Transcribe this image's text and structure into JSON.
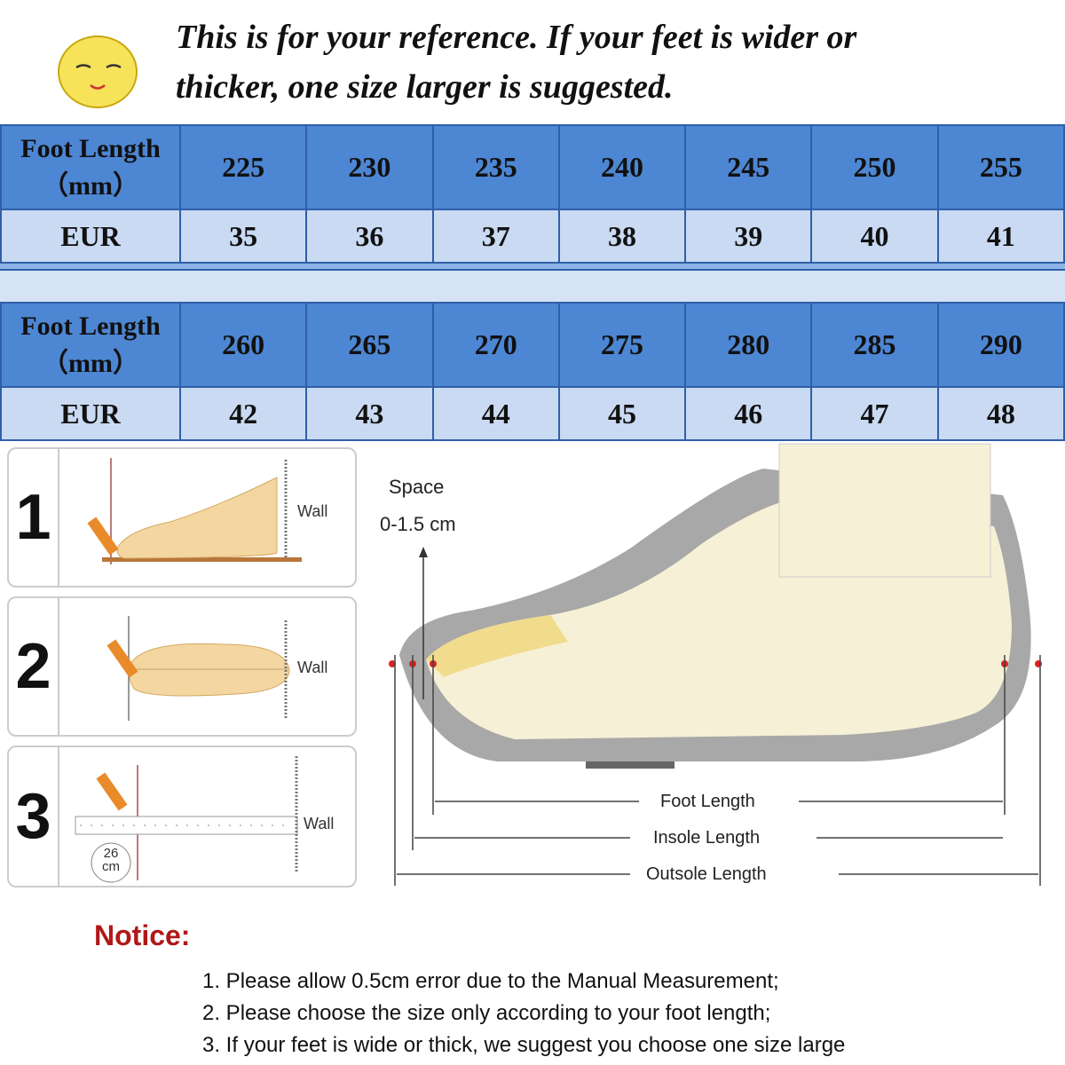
{
  "header": {
    "line1": "This is for your reference. If your feet is wider or",
    "line2": "thicker, one size larger is suggested."
  },
  "colors": {
    "header_blue": "#4d86d3",
    "row_light": "#c9daf2",
    "border": "#2f5fa8",
    "notice_red": "#b01818"
  },
  "table": {
    "row_label_length_1": "Foot Length",
    "row_label_length_2": "（mm）",
    "row_label_eur": "EUR",
    "block1": {
      "lengths": [
        "225",
        "230",
        "235",
        "240",
        "245",
        "250",
        "255"
      ],
      "eur": [
        "35",
        "36",
        "37",
        "38",
        "39",
        "40",
        "41"
      ]
    },
    "block2": {
      "lengths": [
        "260",
        "265",
        "270",
        "275",
        "280",
        "285",
        "290"
      ],
      "eur": [
        "42",
        "43",
        "44",
        "45",
        "46",
        "47",
        "48"
      ]
    }
  },
  "steps": {
    "numbers": [
      "1",
      "2",
      "3"
    ],
    "wall_label": "Wall",
    "ruler_value": "26",
    "ruler_unit": "cm"
  },
  "diagram": {
    "space_label": "Space",
    "space_value": "0-1.5 cm",
    "foot_length": "Foot Length",
    "insole_length": "Insole Length",
    "outsole_length": "Outsole Length"
  },
  "notice": {
    "title": "Notice:",
    "items": [
      "1. Please allow 0.5cm error due to the Manual Measurement;",
      "2. Please choose the size only according to your foot length;",
      "3. If your feet is wide or thick, we suggest you choose one size large"
    ]
  }
}
